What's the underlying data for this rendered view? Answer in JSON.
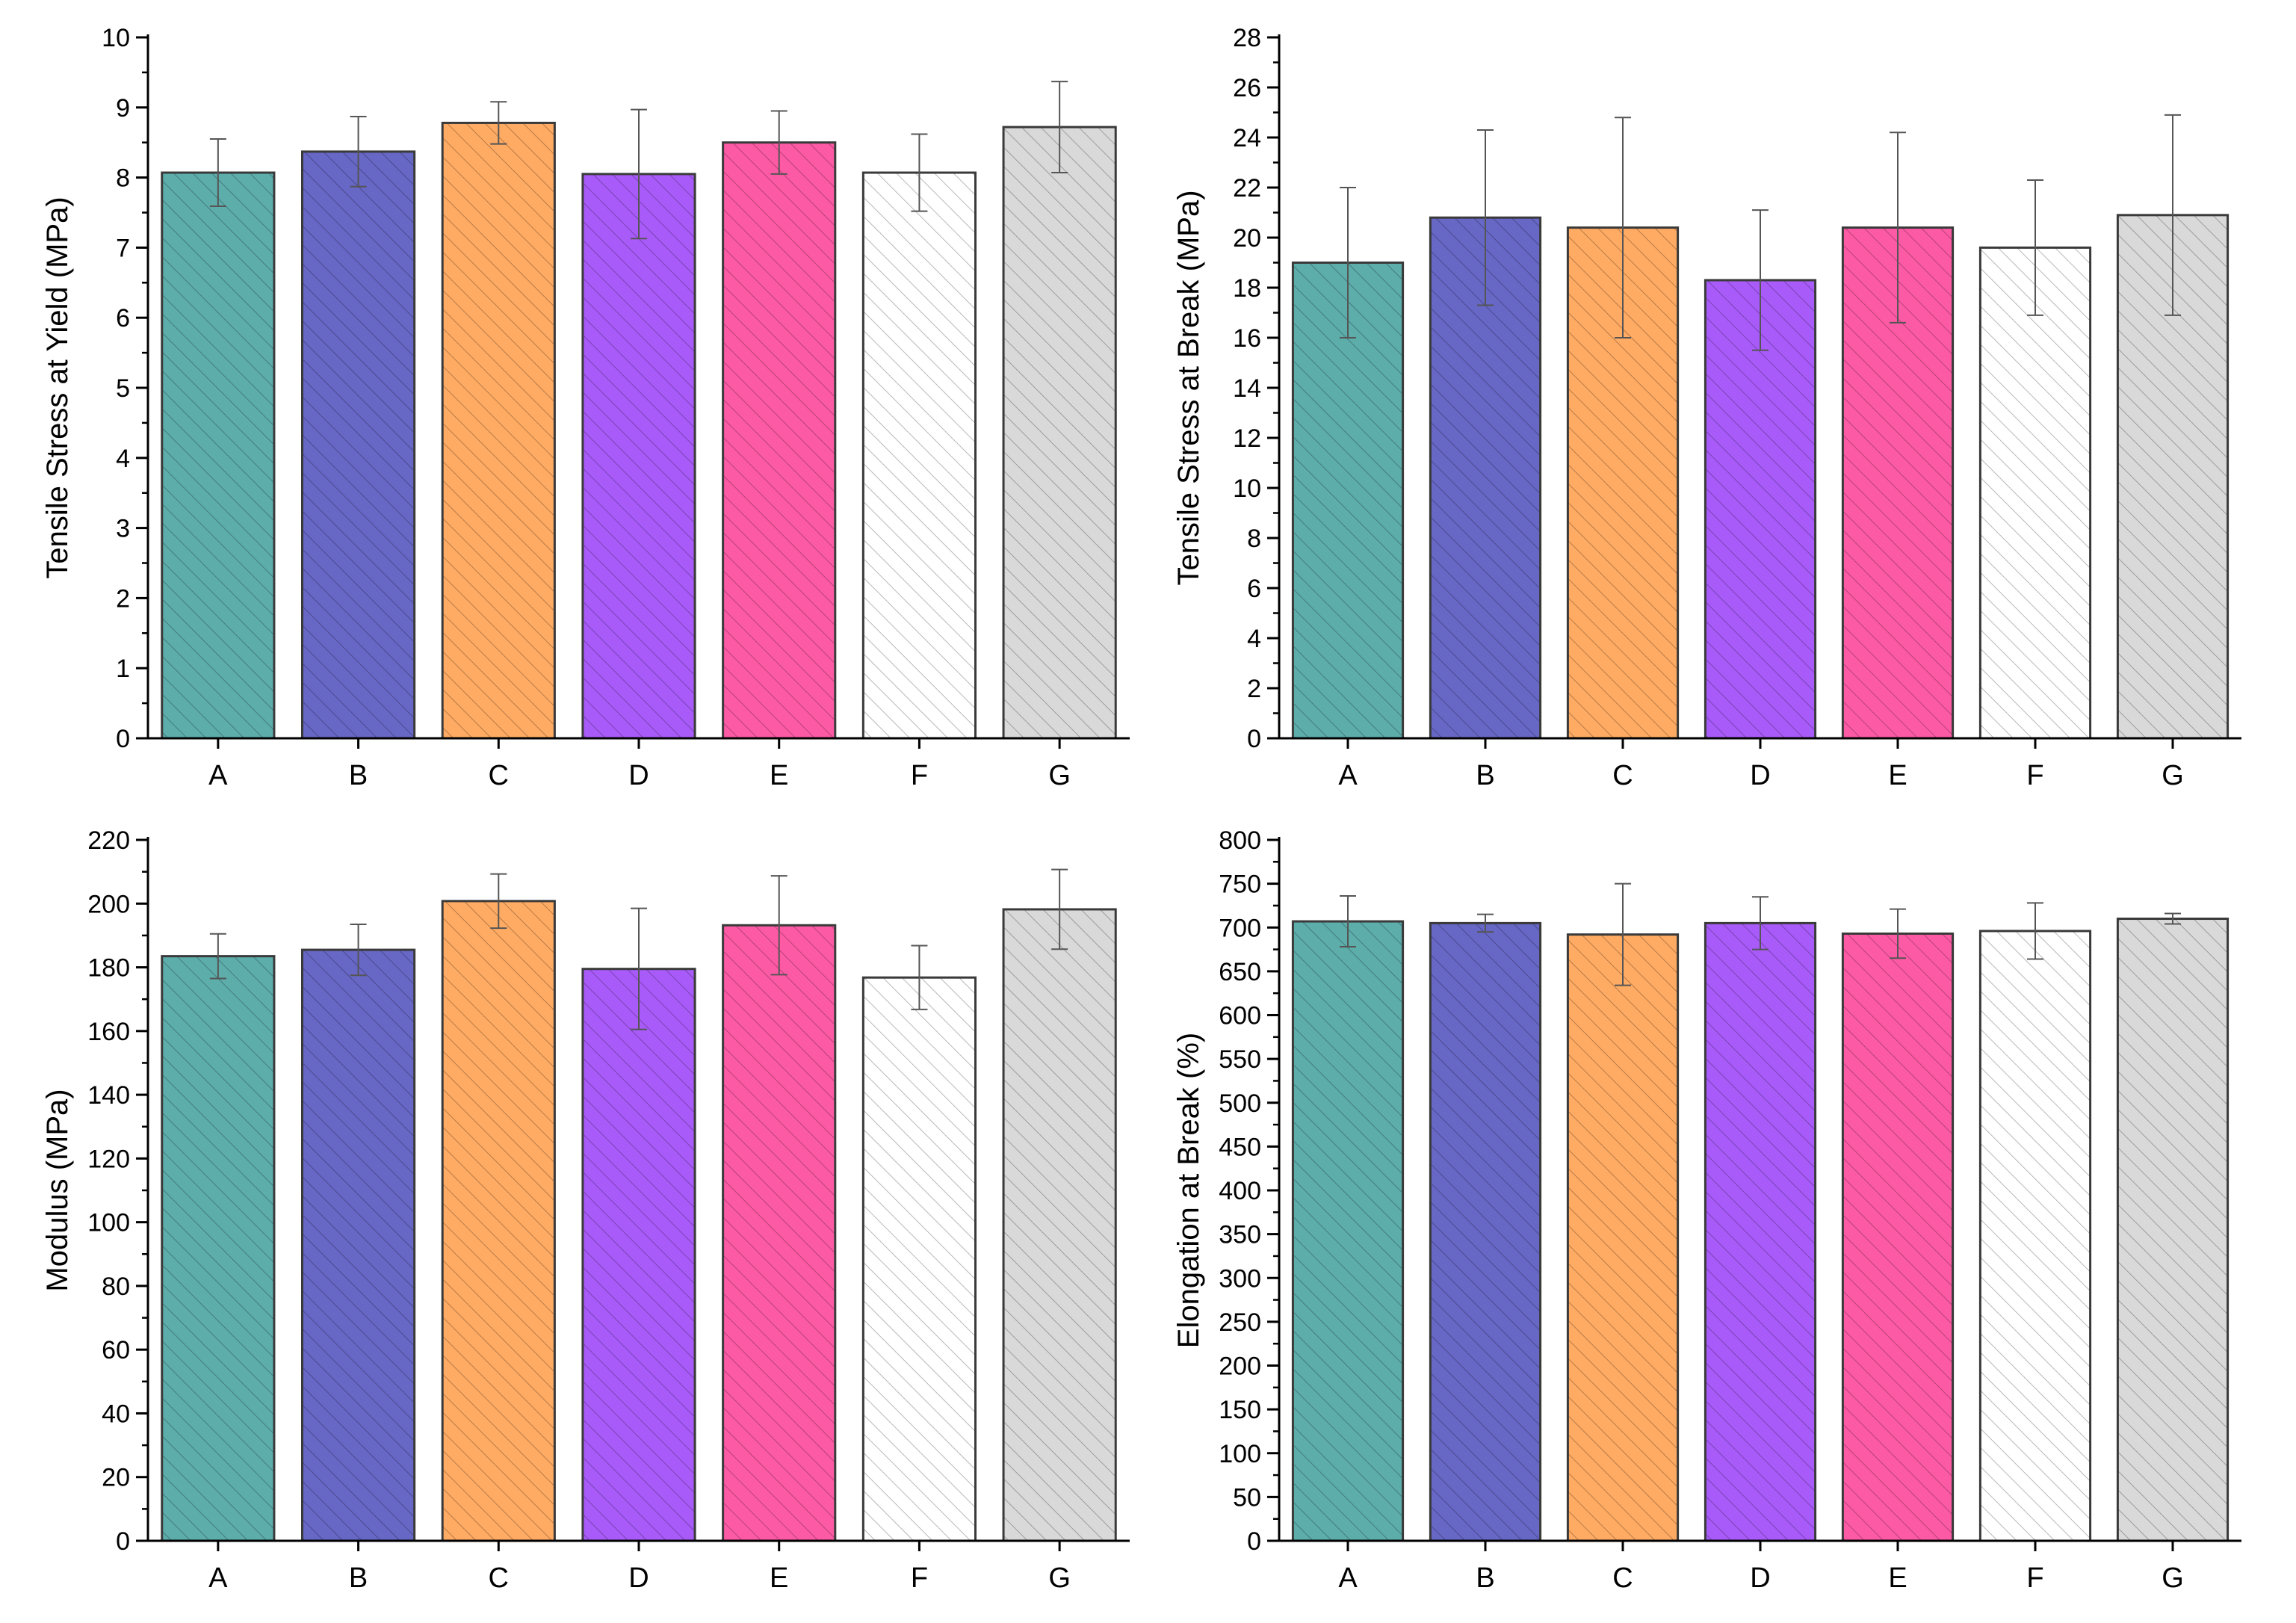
{
  "chart_data": [
    {
      "type": "bar",
      "title": "",
      "xlabel": "",
      "ylabel": "Tensile Stress at Yield (MPa)",
      "categories": [
        "A",
        "B",
        "C",
        "D",
        "E",
        "F",
        "G"
      ],
      "values": [
        8.07,
        8.37,
        8.78,
        8.05,
        8.5,
        8.07,
        8.72
      ],
      "errors": [
        0.48,
        0.5,
        0.3,
        0.92,
        0.45,
        0.55,
        0.65
      ],
      "ylim": [
        0,
        10
      ],
      "yticks": [
        0,
        1,
        2,
        3,
        4,
        5,
        6,
        7,
        8,
        9,
        10
      ],
      "minor_step": 0.5
    },
    {
      "type": "bar",
      "title": "",
      "xlabel": "",
      "ylabel": "Tensile Stress at Break (MPa)",
      "categories": [
        "A",
        "B",
        "C",
        "D",
        "E",
        "F",
        "G"
      ],
      "values": [
        19.0,
        20.8,
        20.4,
        18.3,
        20.4,
        19.6,
        20.9
      ],
      "errors": [
        3.0,
        3.5,
        4.4,
        2.8,
        3.8,
        2.7,
        4.0
      ],
      "ylim": [
        0,
        28
      ],
      "yticks": [
        0,
        2,
        4,
        6,
        8,
        10,
        12,
        14,
        16,
        18,
        20,
        22,
        24,
        26,
        28
      ],
      "minor_step": 1
    },
    {
      "type": "bar",
      "title": "",
      "xlabel": "",
      "ylabel": "Modulus (MPa)",
      "categories": [
        "A",
        "B",
        "C",
        "D",
        "E",
        "F",
        "G"
      ],
      "values": [
        183.5,
        185.5,
        200.8,
        179.5,
        193.2,
        176.8,
        198.2
      ],
      "errors": [
        7.0,
        8.0,
        8.5,
        19.0,
        15.5,
        10.0,
        12.5
      ],
      "ylim": [
        0,
        220
      ],
      "yticks": [
        0,
        20,
        40,
        60,
        80,
        100,
        120,
        140,
        160,
        180,
        200,
        220
      ],
      "minor_step": 10
    },
    {
      "type": "bar",
      "title": "",
      "xlabel": "",
      "ylabel": "Elongation at Break (%)",
      "categories": [
        "A",
        "B",
        "C",
        "D",
        "E",
        "F",
        "G"
      ],
      "values": [
        707,
        705,
        692,
        705,
        693,
        696,
        710
      ],
      "errors": [
        29,
        10,
        58,
        30,
        28,
        32,
        6
      ],
      "ylim": [
        0,
        800
      ],
      "yticks": [
        0,
        50,
        100,
        150,
        200,
        250,
        300,
        350,
        400,
        450,
        500,
        550,
        600,
        650,
        700,
        750,
        800
      ],
      "minor_step": 25
    }
  ],
  "colors": {
    "bar_fills": [
      "#5dadab",
      "#6767c6",
      "#ffab63",
      "#a95bf9",
      "#fd5aa5",
      "#ffffff",
      "#d9d9d9"
    ],
    "axis": "#000000",
    "bar_outline": "#3a3a3a",
    "error_bar": "#555555"
  }
}
